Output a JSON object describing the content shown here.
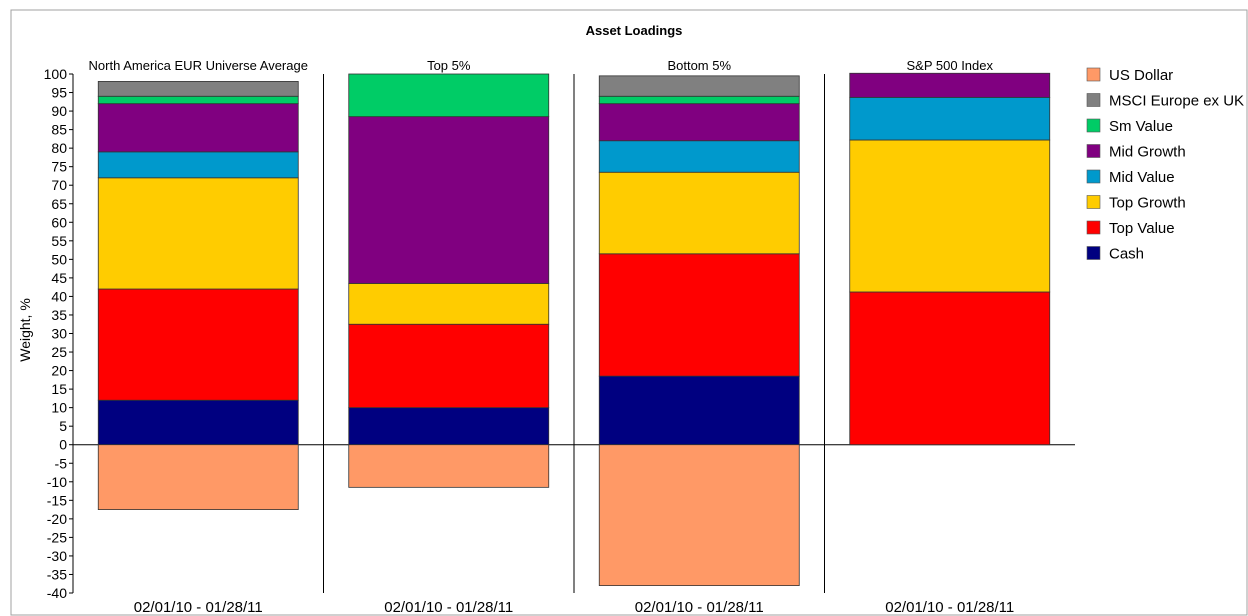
{
  "chart_data": {
    "type": "bar",
    "stacked": true,
    "title": "Asset Loadings",
    "ylabel": "Weight, %",
    "xlabel": "",
    "ylim": [
      -40,
      100
    ],
    "ytick_step": 5,
    "grid": false,
    "legend_position": "right",
    "panels": [
      {
        "title": "North America EUR Universe Average",
        "category": "02/01/10 - 01/28/11"
      },
      {
        "title": "Top 5%",
        "category": "02/01/10 - 01/28/11"
      },
      {
        "title": "Bottom 5%",
        "category": "02/01/10 - 01/28/11"
      },
      {
        "title": "S&P 500 Index",
        "category": "02/01/10 - 01/28/11"
      }
    ],
    "series": [
      {
        "name": "US Dollar",
        "color": "#ff9966",
        "values": [
          -17.5,
          -11.5,
          -38,
          0
        ]
      },
      {
        "name": "MSCI Europe ex UK",
        "color": "#808080",
        "values": [
          4,
          0,
          5.5,
          0
        ]
      },
      {
        "name": "Sm Value",
        "color": "#00cc66",
        "values": [
          2,
          11.5,
          2,
          0
        ]
      },
      {
        "name": "Mid Growth",
        "color": "#800080",
        "values": [
          13,
          45,
          10,
          6.5
        ]
      },
      {
        "name": "Mid Value",
        "color": "#0099cc",
        "values": [
          7,
          0,
          8.5,
          11.5
        ]
      },
      {
        "name": "Top Growth",
        "color": "#ffcc00",
        "values": [
          30,
          11,
          22,
          41
        ]
      },
      {
        "name": "Top Value",
        "color": "#ff0000",
        "values": [
          30,
          22.5,
          33,
          41.2
        ]
      },
      {
        "name": "Cash",
        "color": "#000080",
        "values": [
          12,
          10,
          18.5,
          0
        ]
      }
    ]
  }
}
